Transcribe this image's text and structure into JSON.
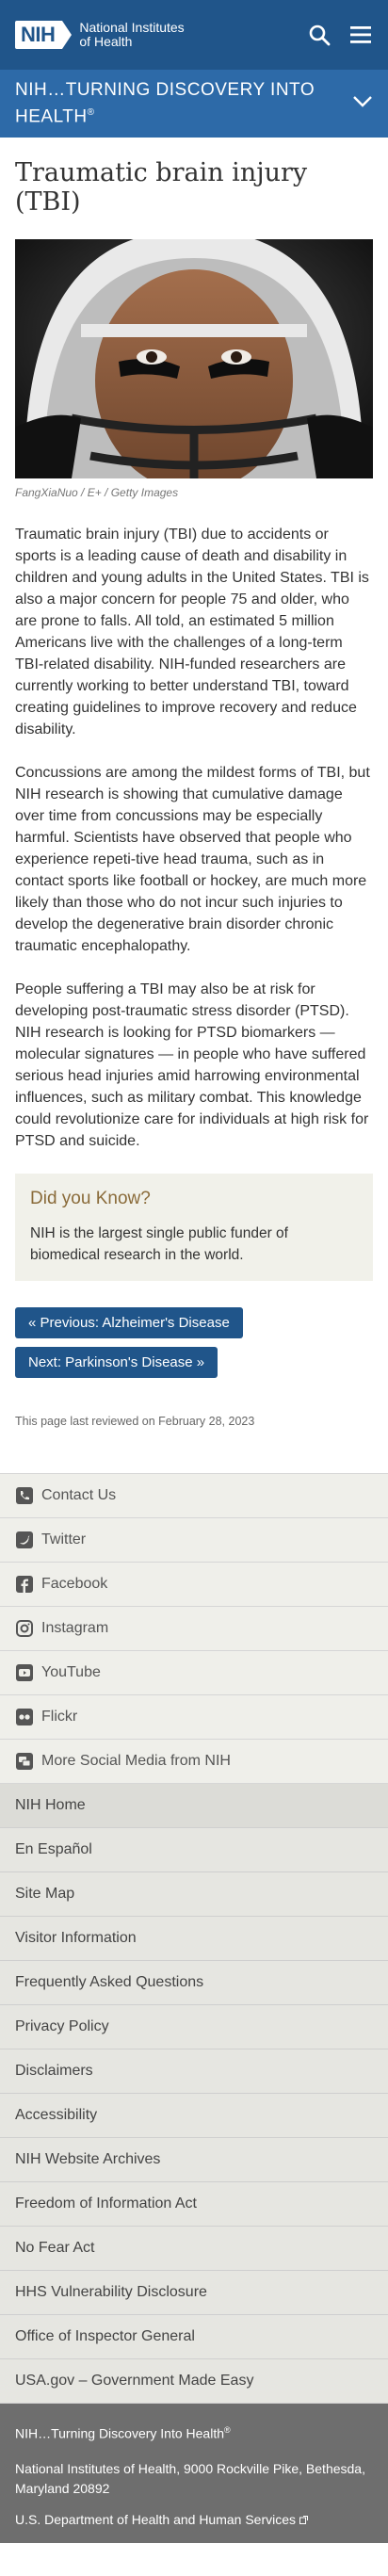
{
  "header": {
    "logo_mark": "NIH",
    "logo_line1": "National Institutes",
    "logo_line2": "of Health"
  },
  "tagline": {
    "text": "NIH…TURNING DISCOVERY INTO HEALTH",
    "mark": "®"
  },
  "article": {
    "title": "Traumatic brain injury (TBI)",
    "image_credit": "FangXiaNuo / E+ / Getty Images",
    "paragraphs": [
      "Traumatic brain injury (TBI) due to accidents or sports is a leading cause of death and disability in children and young adults in the United States. TBI is also a major concern for people 75 and older, who are prone to falls. All told, an estimated 5 million Americans live with the challenges of a long-term TBI-related disability. NIH-funded researchers are currently working to better understand TBI, toward creating guidelines to improve recovery and reduce disability.",
      "Concussions are among the mildest forms of TBI, but NIH research is showing that cumulative damage over time from concussions may be especially harmful. Scientists have observed that people who experience repeti-tive head trauma, such as in contact sports like football or hockey, are much more likely than those who do not incur such injuries to develop the degenerative brain disorder chronic traumatic encephalopathy.",
      "People suffering a TBI may also be at risk for developing post-traumatic stress disorder (PTSD). NIH research is looking for PTSD biomarkers — molecular signatures — in people who have suffered serious head injuries amid harrowing environmental influences, such as military combat. This knowledge could revolutionize care for individuals at high risk for PTSD and suicide."
    ],
    "callout_title": "Did you Know?",
    "callout_text": "NIH is the largest single public funder of biomedical research in the world.",
    "prev_label": "« Previous: Alzheimer's Disease",
    "next_label": "Next: Parkinson's Disease »",
    "reviewed": "This page last reviewed on February 28, 2023"
  },
  "social": [
    {
      "label": "Contact Us",
      "icon": "phone-icon"
    },
    {
      "label": "Twitter",
      "icon": "twitter-icon"
    },
    {
      "label": "Facebook",
      "icon": "facebook-icon"
    },
    {
      "label": "Instagram",
      "icon": "instagram-icon"
    },
    {
      "label": "YouTube",
      "icon": "youtube-icon"
    },
    {
      "label": "Flickr",
      "icon": "flickr-icon"
    },
    {
      "label": "More Social Media from NIH",
      "icon": "share-icon"
    }
  ],
  "links": [
    "NIH Home",
    "En Español",
    "Site Map",
    "Visitor Information",
    "Frequently Asked Questions",
    "Privacy Policy",
    "Disclaimers",
    "Accessibility",
    "NIH Website Archives",
    "Freedom of Information Act",
    "No Fear Act",
    "HHS Vulnerability Disclosure",
    "Office of Inspector General",
    "USA.gov – Government Made Easy"
  ],
  "bottom": {
    "tagline": "NIH…Turning Discovery Into Health",
    "tagline_mark": "®",
    "address": "National Institutes of Health, 9000 Rockville Pike, Bethesda, Maryland 20892",
    "hhs": "U.S. Department of Health and Human Services"
  },
  "colors": {
    "brand": "#20558a",
    "tagline_bar": "#2d6aa8",
    "callout_title": "#8a6b3a"
  }
}
